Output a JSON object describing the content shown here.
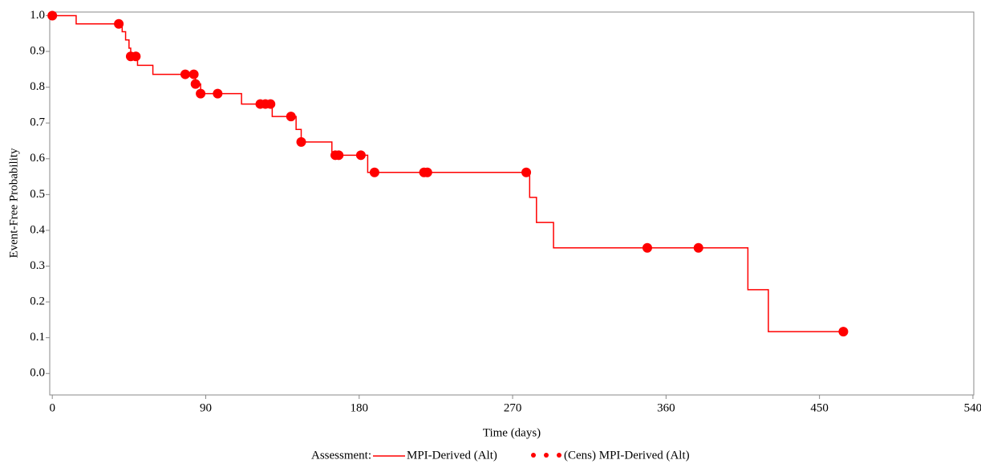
{
  "chart_data": {
    "type": "step",
    "xlabel": "Time (days)",
    "ylabel": "Event-Free Probability",
    "legend_title": "Assessment:",
    "legend": "bottom",
    "xlim": [
      -1.5,
      540.5
    ],
    "xticks": [
      0,
      90,
      180,
      270,
      360,
      450,
      540
    ],
    "ylim": [
      -0.06,
      1.01
    ],
    "yticks": [
      {
        "value": 0,
        "label": "0.0"
      },
      {
        "value": 0.1,
        "label": "0.1"
      },
      {
        "value": 0.2,
        "label": "0.2"
      },
      {
        "value": 0.3,
        "label": "0.3"
      },
      {
        "value": 0.4,
        "label": "0.4"
      },
      {
        "value": 0.5,
        "label": "0.5"
      },
      {
        "value": 0.6,
        "label": "0.6"
      },
      {
        "value": 0.7,
        "label": "0.7"
      },
      {
        "value": 0.8,
        "label": "0.8"
      },
      {
        "value": 0.9,
        "label": "0.9"
      },
      {
        "value": 1,
        "label": "1.0"
      }
    ],
    "series": [
      {
        "name": "MPI-Derived (Alt)",
        "color": "#ff0000",
        "marker": "line",
        "x": [
          0,
          14,
          41,
          43,
          45,
          46,
          50,
          59,
          84,
          87,
          111,
          129,
          143,
          146,
          164,
          185,
          280,
          284,
          294,
          408,
          420,
          464
        ],
        "values": [
          1.0,
          0.977,
          0.955,
          0.932,
          0.909,
          0.886,
          0.861,
          0.836,
          0.809,
          0.782,
          0.753,
          0.718,
          0.682,
          0.647,
          0.61,
          0.562,
          0.492,
          0.422,
          0.351,
          0.234,
          0.117,
          0.117
        ]
      },
      {
        "name": "(Cens) MPI-Derived (Alt)",
        "color": "#ff0000",
        "marker": "dot",
        "x": [
          0,
          39,
          46,
          49,
          78,
          83,
          84,
          87,
          97,
          122,
          125,
          128,
          140,
          146,
          166,
          168,
          181,
          189,
          218,
          220,
          278,
          349,
          379,
          464
        ],
        "values": [
          1.0,
          0.977,
          0.886,
          0.886,
          0.836,
          0.836,
          0.809,
          0.782,
          0.782,
          0.753,
          0.753,
          0.753,
          0.718,
          0.647,
          0.61,
          0.61,
          0.61,
          0.562,
          0.562,
          0.562,
          0.562,
          0.351,
          0.351,
          0.117
        ]
      }
    ]
  }
}
